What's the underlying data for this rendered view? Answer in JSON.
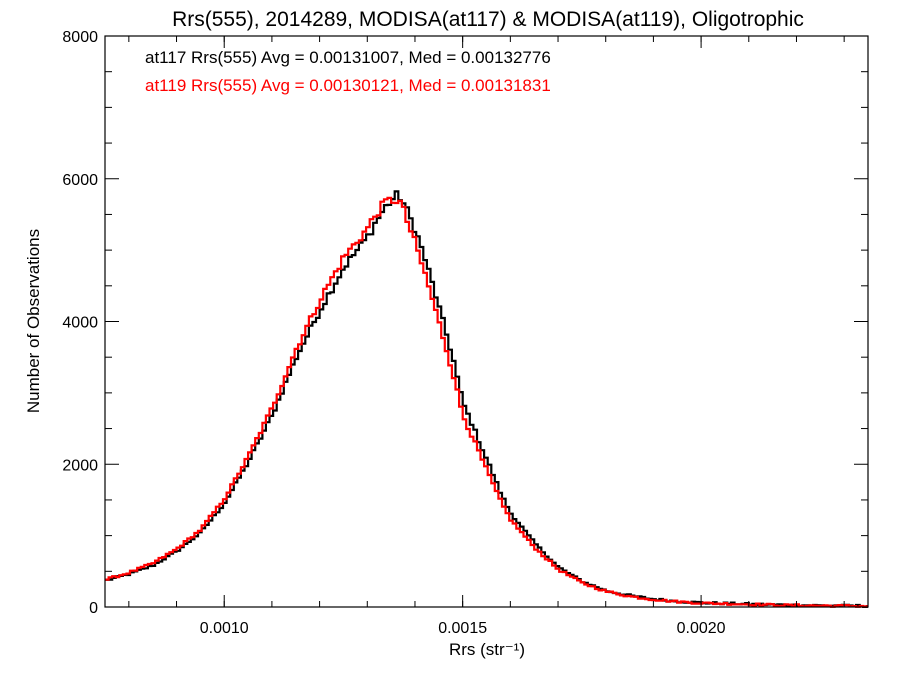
{
  "chart_data": {
    "type": "line",
    "title": "Rrs(555), 2014289, MODISA(at117) & MODISA(at119), Oligotrophic",
    "xlabel": "Rrs (str⁻¹)",
    "ylabel": "Number of Observations",
    "xlim": [
      0.00075,
      0.00235
    ],
    "ylim": [
      0,
      8000
    ],
    "xticks": [
      0.001,
      0.0015,
      0.002
    ],
    "xtick_labels": [
      "0.0010",
      "0.0015",
      "0.0020"
    ],
    "yticks": [
      0,
      2000,
      4000,
      6000,
      8000
    ],
    "ytick_labels": [
      "0",
      "2000",
      "4000",
      "6000",
      "8000"
    ],
    "grid": false,
    "legend_position": "top-left",
    "annotations": [
      {
        "text": "at117 Rrs(555) Avg = 0.00131007, Med = 0.00132776",
        "color": "#000000"
      },
      {
        "text": "at119 Rrs(555) Avg = 0.00130121, Med = 0.00131831",
        "color": "#ff0000"
      }
    ],
    "series": [
      {
        "color": "#000000",
        "x": [
          0.00075,
          0.0008,
          0.00085,
          0.0009,
          0.00095,
          0.001,
          0.00105,
          0.0011,
          0.00115,
          0.0012,
          0.00125,
          0.0013,
          0.00132,
          0.00134,
          0.00136,
          0.00137,
          0.00138,
          0.0014,
          0.00142,
          0.00144,
          0.00146,
          0.00148,
          0.0015,
          0.00152,
          0.00154,
          0.00156,
          0.00158,
          0.0016,
          0.00165,
          0.0017,
          0.00175,
          0.0018,
          0.00185,
          0.0019,
          0.00195,
          0.002,
          0.0021,
          0.0022,
          0.00235
        ],
        "y": [
          370,
          460,
          580,
          780,
          1040,
          1450,
          2030,
          2680,
          3480,
          4150,
          4750,
          5180,
          5420,
          5620,
          5760,
          5740,
          5600,
          5300,
          4900,
          4450,
          3970,
          3480,
          2870,
          2560,
          2230,
          1920,
          1590,
          1320,
          900,
          560,
          360,
          230,
          160,
          110,
          80,
          60,
          40,
          25,
          15
        ]
      },
      {
        "color": "#ff0000",
        "x": [
          0.00075,
          0.0008,
          0.00085,
          0.0009,
          0.00095,
          0.001,
          0.00105,
          0.0011,
          0.00115,
          0.0012,
          0.00125,
          0.0013,
          0.00132,
          0.00134,
          0.00136,
          0.00137,
          0.00138,
          0.0014,
          0.00142,
          0.00144,
          0.00146,
          0.00148,
          0.0015,
          0.00152,
          0.00154,
          0.00156,
          0.00158,
          0.0016,
          0.00165,
          0.0017,
          0.00175,
          0.0018,
          0.00185,
          0.0019,
          0.00195,
          0.002,
          0.0021,
          0.0022,
          0.00235
        ],
        "y": [
          380,
          480,
          610,
          810,
          1080,
          1510,
          2100,
          2780,
          3600,
          4290,
          4890,
          5300,
          5520,
          5680,
          5710,
          5660,
          5480,
          5100,
          4690,
          4230,
          3760,
          3270,
          2700,
          2390,
          2080,
          1780,
          1480,
          1230,
          840,
          530,
          340,
          220,
          150,
          105,
          75,
          55,
          38,
          22,
          12
        ]
      }
    ]
  }
}
